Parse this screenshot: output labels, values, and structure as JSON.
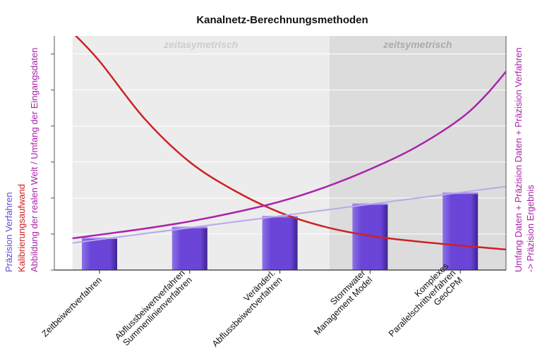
{
  "chart_data": {
    "type": "bar",
    "title": "Kanalnetz-Berechnungsmethoden",
    "categories": [
      [
        "Zeitbeiwertverfahren"
      ],
      [
        "Abflussbeiwertverfahren",
        "Summenlinienverfahren"
      ],
      [
        "Veränderl.",
        "Abflussbeiwertverfahren"
      ],
      [
        "Stormwater",
        "Management Model"
      ],
      [
        "Komplexes",
        "Parallelschrittverfahren",
        "GeoCPM"
      ]
    ],
    "category_labels": [
      "Zeitbeiwertverfahren",
      "Abflussbeiwertverfahren Summenlinienverfahren",
      "Veränderl. Abflussbeiwertverfahren",
      "Stormwater Management Model",
      "Komplexes Parallelschrittverfahren GeoCPM"
    ],
    "ylim": [
      0,
      6.5
    ],
    "series": [
      {
        "name": "Präzision Verfahren",
        "kind": "bar",
        "color": "#6a45d8",
        "values": [
          0.9,
          1.2,
          1.5,
          1.85,
          2.15
        ]
      },
      {
        "name": "Kalibrierungsaufwand",
        "kind": "curve",
        "color": "#cc2222",
        "x": [
          -0.3,
          0.0,
          0.5,
          1.0,
          1.5,
          2.0,
          2.5,
          3.0,
          3.5,
          4.0,
          4.6
        ],
        "values": [
          6.6,
          5.8,
          4.2,
          3.0,
          2.2,
          1.6,
          1.2,
          0.95,
          0.8,
          0.68,
          0.55
        ]
      },
      {
        "name": "Abbildung der realen Welt / Umfang der Eingangsdaten",
        "kind": "curve",
        "color": "#aa22aa",
        "x": [
          -0.3,
          0.0,
          0.5,
          1.0,
          1.5,
          2.0,
          2.5,
          3.0,
          3.5,
          4.0,
          4.3,
          4.6
        ],
        "values": [
          0.88,
          0.98,
          1.15,
          1.35,
          1.6,
          1.9,
          2.3,
          2.8,
          3.4,
          4.2,
          4.9,
          5.8
        ]
      },
      {
        "name": "Trend",
        "kind": "line",
        "color": "#b8aae8",
        "x": [
          -0.3,
          4.6
        ],
        "values": [
          0.75,
          2.35
        ]
      }
    ],
    "regions": [
      {
        "label": "zeitasymetrisch",
        "from": -0.3,
        "to": 2.55,
        "color": "#ececec",
        "text_color": "#cdcdcd"
      },
      {
        "label": "zeitsymetrisch",
        "from": 2.55,
        "to": 4.6,
        "color": "#dcdcdc",
        "text_color": "#ababab"
      }
    ],
    "left_axis_labels": [
      {
        "text": "Präzision Verfahren",
        "color": "#6a45d8"
      },
      {
        "text": "Kalibrierungsaufwand",
        "color": "#cc2222"
      },
      {
        "text": "Abbildung der realen Welt / Umfang der Eingangsdaten",
        "color": "#aa22aa"
      }
    ],
    "right_axis_labels": [
      {
        "text": "Umfang Daten + Präzision Daten + Präzision Verfahren",
        "color": "#aa22aa"
      },
      {
        "text": "-> Präzision Ergebnis",
        "color": "#aa22aa"
      }
    ],
    "grid": true
  }
}
